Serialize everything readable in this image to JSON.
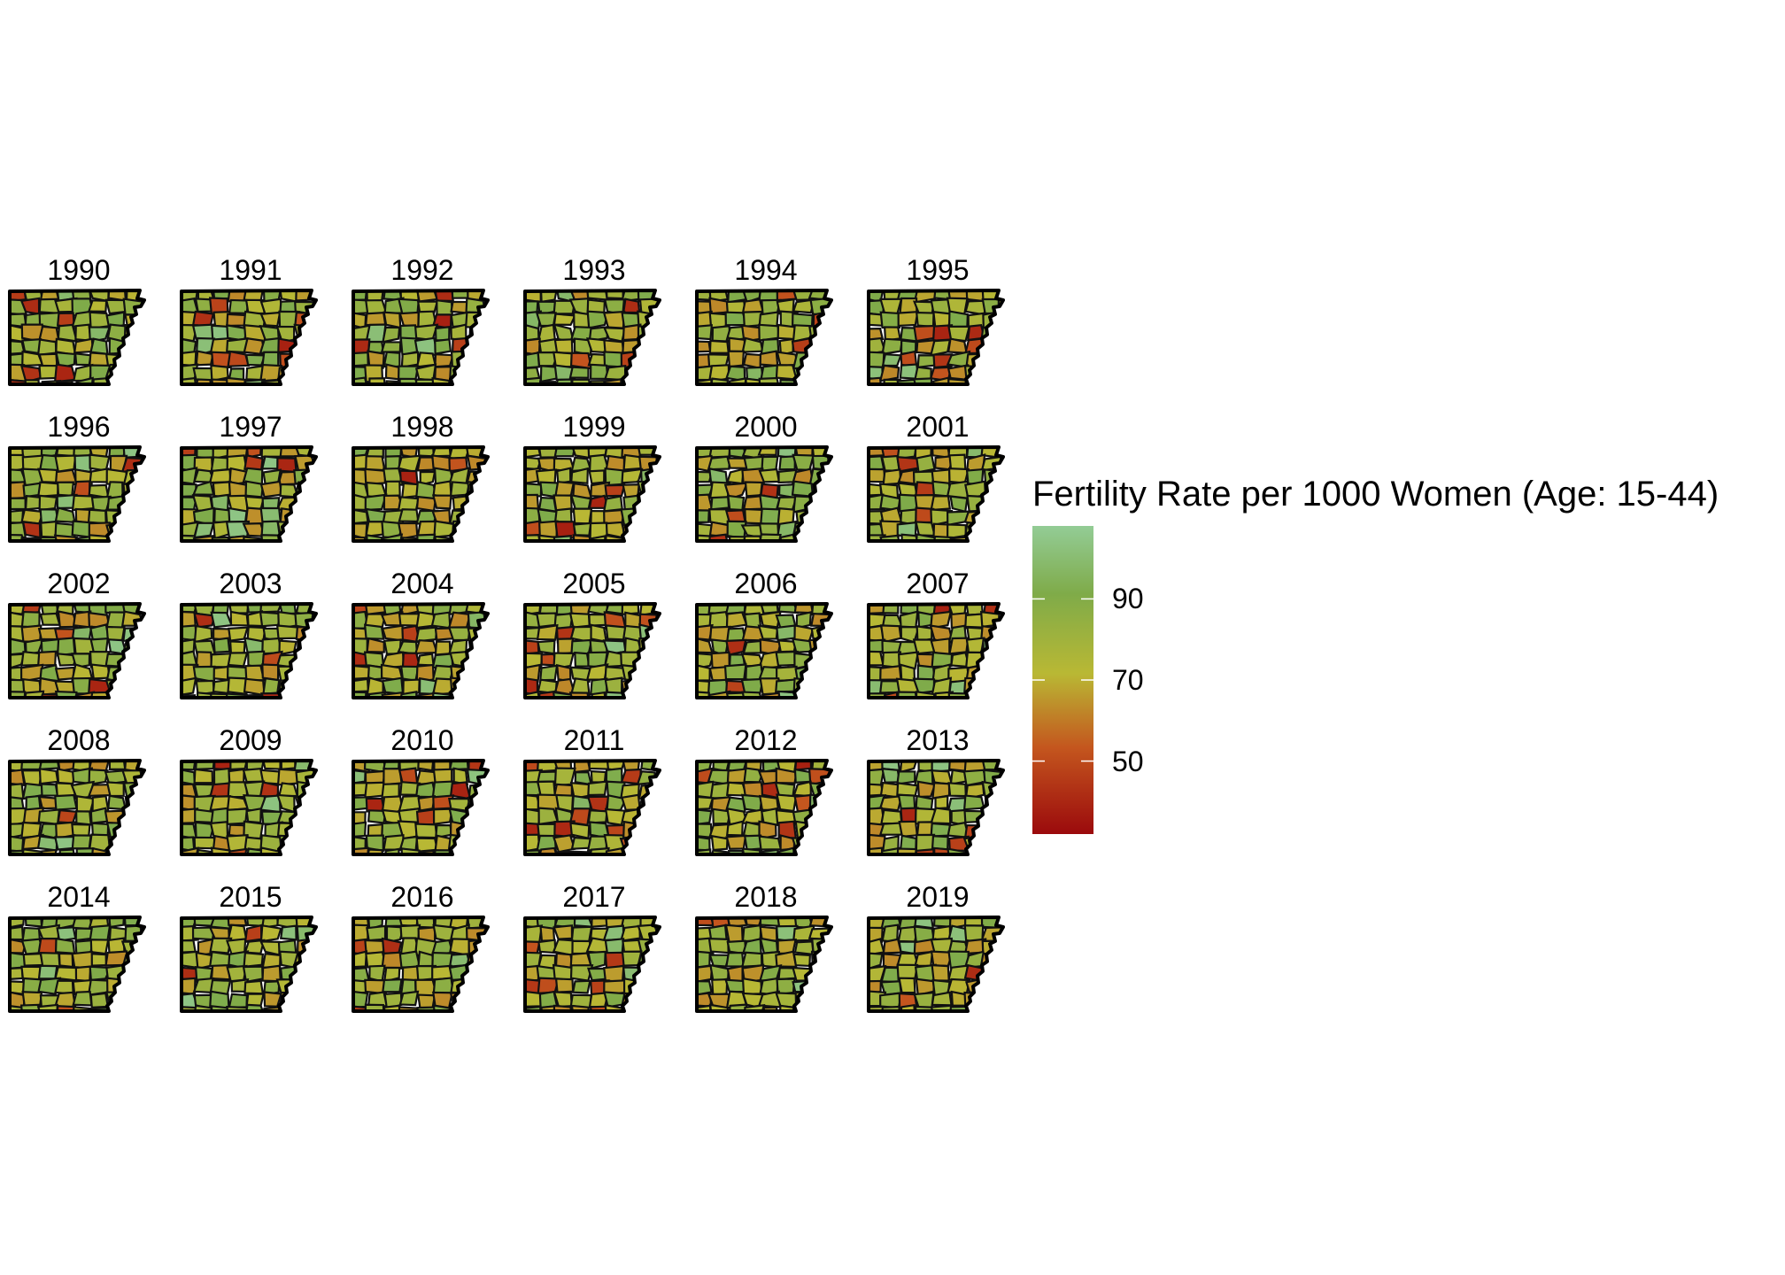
{
  "panels": [
    {
      "year": "1990"
    },
    {
      "year": "1991"
    },
    {
      "year": "1992"
    },
    {
      "year": "1993"
    },
    {
      "year": "1994"
    },
    {
      "year": "1995"
    },
    {
      "year": "1996"
    },
    {
      "year": "1997"
    },
    {
      "year": "1998"
    },
    {
      "year": "1999"
    },
    {
      "year": "2000"
    },
    {
      "year": "2001"
    },
    {
      "year": "2002"
    },
    {
      "year": "2003"
    },
    {
      "year": "2004"
    },
    {
      "year": "2005"
    },
    {
      "year": "2006"
    },
    {
      "year": "2007"
    },
    {
      "year": "2008"
    },
    {
      "year": "2009"
    },
    {
      "year": "2010"
    },
    {
      "year": "2011"
    },
    {
      "year": "2012"
    },
    {
      "year": "2013"
    },
    {
      "year": "2014"
    },
    {
      "year": "2015"
    },
    {
      "year": "2016"
    },
    {
      "year": "2017"
    },
    {
      "year": "2018"
    },
    {
      "year": "2019"
    }
  ],
  "legend": {
    "title": "Fertility Rate per 1000 Women (Age: 15-44)",
    "ticks": [
      {
        "value": 90,
        "label": "90"
      },
      {
        "value": 70,
        "label": "70"
      },
      {
        "value": 50,
        "label": "50"
      }
    ],
    "range": [
      32,
      108
    ],
    "colors": {
      "low": "#9b0a0c",
      "mid_low": "#c4561e",
      "mid": "#b9b834",
      "mid_high": "#7fab49",
      "high": "#93cc96"
    }
  }
}
